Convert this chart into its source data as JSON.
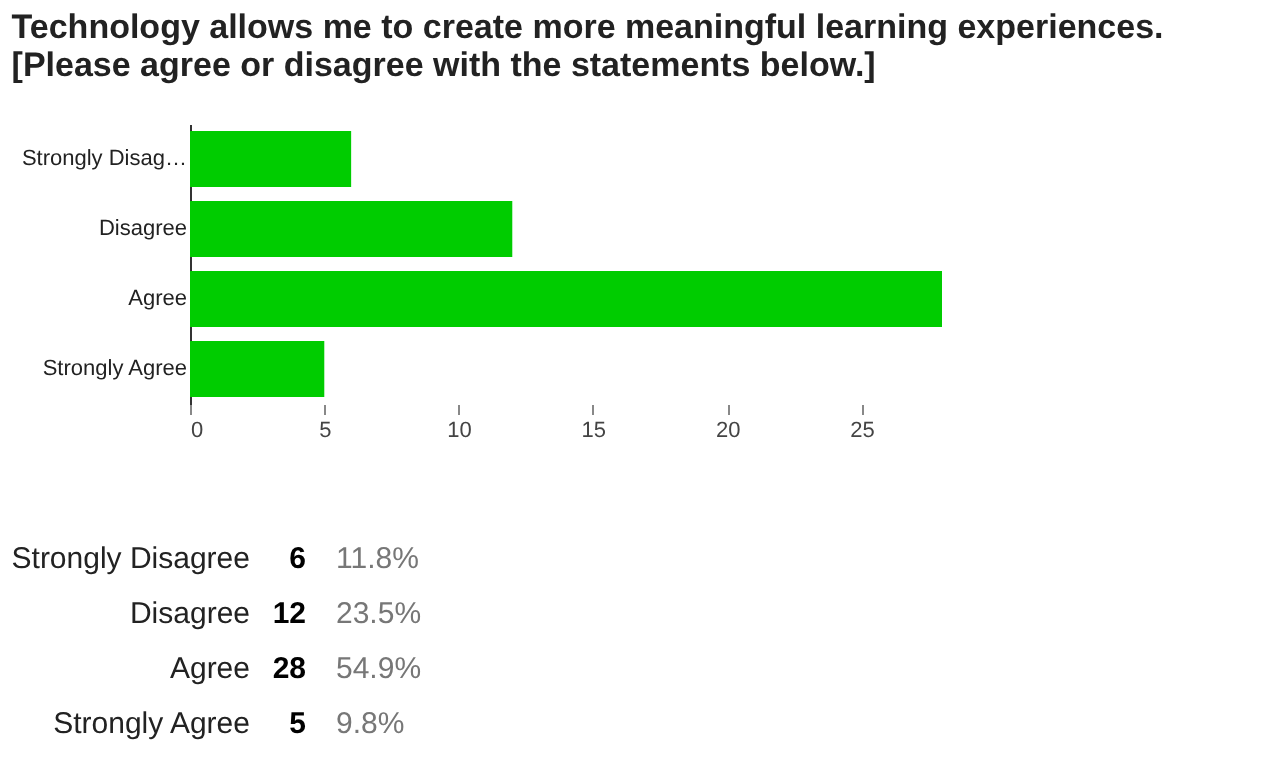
{
  "chart_data": {
    "type": "bar",
    "orientation": "horizontal",
    "title": [
      "Technology allows me to create more meaningful learning experiences.",
      "[Please agree or disagree with the statements below.]"
    ],
    "categories": [
      "Strongly Disag…",
      "Disagree",
      "Agree",
      "Strongly Agree"
    ],
    "values": [
      6,
      12,
      28,
      5
    ],
    "color": "#00cc00",
    "xlim": [
      0,
      28
    ],
    "xticks": [
      0,
      5,
      10,
      15,
      20,
      25
    ],
    "grid": false,
    "annotations": [
      "Strongly Disagree",
      "6",
      "11.8%",
      "Disagree",
      "12",
      "23.5%",
      "Agree",
      "28",
      "54.9%",
      "Strongly Agree",
      "5",
      "9.8%"
    ]
  }
}
